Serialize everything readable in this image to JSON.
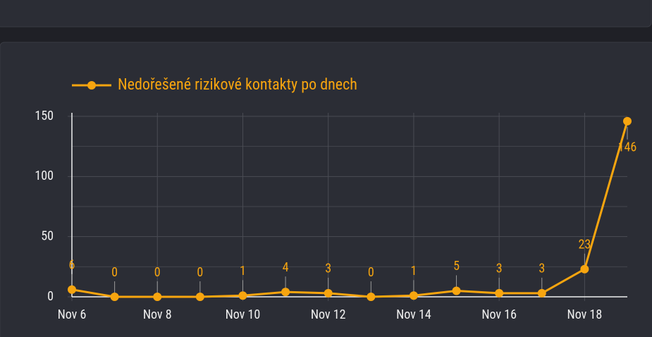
{
  "chart_data": {
    "type": "line",
    "title": "Nedořešené rizikové kontakty po dnech",
    "categories": [
      "Nov 6",
      null,
      "Nov 8",
      null,
      "Nov 10",
      null,
      "Nov 12",
      null,
      "Nov 14",
      null,
      "Nov 16",
      null,
      "Nov 18",
      null
    ],
    "series": [
      {
        "name": "Nedořešené rizikové kontakty po dnech",
        "color": "#f7a50f",
        "values": [
          6,
          0,
          0,
          0,
          1,
          4,
          3,
          0,
          1,
          5,
          3,
          3,
          23,
          146
        ]
      }
    ],
    "ylim": [
      0,
      150
    ],
    "yticks": [
      0,
      50,
      100,
      150
    ],
    "y_minor_ticks": [
      25,
      75,
      125
    ],
    "grid": true,
    "legend": "top-left"
  }
}
